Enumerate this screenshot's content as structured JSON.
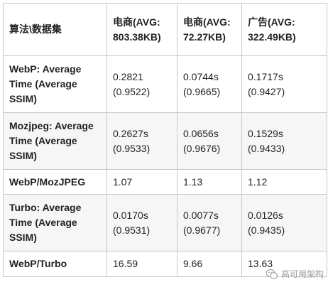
{
  "table": {
    "headers": [
      "算法\\数据集",
      "电商(AVG: 803.38KB)",
      "电商(AVG: 72.27KB)",
      "广告(AVG: 322.49KB)"
    ],
    "rows": [
      {
        "label": "WebP: Average Time (Average SSIM)",
        "cells": [
          "0.2821 (0.9522)",
          "0.0744s (0.9665)",
          "0.1717s (0.9427)"
        ]
      },
      {
        "label": "Mozjpeg: Average Time (Average SSIM)",
        "cells": [
          "0.2627s (0.9533)",
          "0.0656s (0.9676)",
          "0.1529s (0.9433)"
        ]
      },
      {
        "label": "WebP/MozJPEG",
        "cells": [
          "1.07",
          "1.13",
          "1.12"
        ]
      },
      {
        "label": "Turbo: Average Time (Average SSIM)",
        "cells": [
          "0.0170s (0.9531)",
          "0.0077s (0.9677)",
          "0.0126s (0.9435)"
        ]
      },
      {
        "label": "WebP/Turbo",
        "cells": [
          "16.59",
          "9.66",
          "13.63"
        ]
      }
    ]
  },
  "watermark": {
    "icon": "wechat-logo-icon",
    "text": "高可用架构"
  }
}
